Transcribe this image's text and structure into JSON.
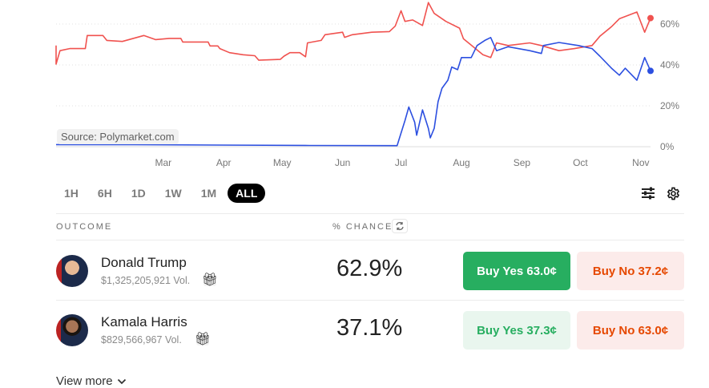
{
  "source_label": "Source: Polymarket.com",
  "chart_data": {
    "type": "line",
    "x_ticks": [
      "Mar",
      "Apr",
      "May",
      "Jun",
      "Jul",
      "Aug",
      "Sep",
      "Oct",
      "Nov"
    ],
    "y_ticks": [
      "0%",
      "20%",
      "40%",
      "60%"
    ],
    "ylim": [
      0,
      70
    ],
    "xlim": [
      "2024-01-06",
      "2024-11-06"
    ],
    "grid": "horizontal dotted",
    "series": [
      {
        "color": "#f0524f",
        "points": [
          [
            "2024-01-06",
            49.5
          ],
          [
            "2024-01-06",
            40.4
          ],
          [
            "2024-01-08",
            47
          ],
          [
            "2024-01-13",
            48
          ],
          [
            "2024-01-21",
            48
          ],
          [
            "2024-01-22",
            54.4
          ],
          [
            "2024-01-30",
            54.4
          ],
          [
            "2024-02-01",
            52
          ],
          [
            "2024-02-09",
            51.5
          ],
          [
            "2024-02-20",
            54.4
          ],
          [
            "2024-02-26",
            52.4
          ],
          [
            "2024-03-04",
            53
          ],
          [
            "2024-03-10",
            53
          ],
          [
            "2024-03-11",
            51.2
          ],
          [
            "2024-03-24",
            51.2
          ],
          [
            "2024-03-25",
            49.3
          ],
          [
            "2024-03-29",
            49.3
          ],
          [
            "2024-03-30",
            48
          ],
          [
            "2024-04-04",
            46
          ],
          [
            "2024-04-11",
            45
          ],
          [
            "2024-04-17",
            44.5
          ],
          [
            "2024-04-19",
            42.3
          ],
          [
            "2024-04-30",
            42.7
          ],
          [
            "2024-05-02",
            44.3
          ],
          [
            "2024-05-05",
            46
          ],
          [
            "2024-05-10",
            46
          ],
          [
            "2024-05-13",
            44
          ],
          [
            "2024-05-14",
            50.8
          ],
          [
            "2024-05-21",
            52
          ],
          [
            "2024-05-23",
            54.8
          ],
          [
            "2024-06-01",
            56
          ],
          [
            "2024-06-02",
            53.5
          ],
          [
            "2024-06-06",
            54.8
          ],
          [
            "2024-06-16",
            56
          ],
          [
            "2024-06-25",
            56.3
          ],
          [
            "2024-06-28",
            59
          ],
          [
            "2024-07-01",
            66.5
          ],
          [
            "2024-07-03",
            61.3
          ],
          [
            "2024-07-07",
            62
          ],
          [
            "2024-07-12",
            59.3
          ],
          [
            "2024-07-15",
            70.5
          ],
          [
            "2024-07-18",
            65.2
          ],
          [
            "2024-07-24",
            61.3
          ],
          [
            "2024-07-31",
            58
          ],
          [
            "2024-08-02",
            52.8
          ],
          [
            "2024-08-07",
            48.9
          ],
          [
            "2024-08-12",
            45
          ],
          [
            "2024-08-16",
            43.6
          ],
          [
            "2024-08-19",
            50.8
          ],
          [
            "2024-08-25",
            49.5
          ],
          [
            "2024-09-05",
            50.8
          ],
          [
            "2024-09-11",
            49.5
          ],
          [
            "2024-09-20",
            47
          ],
          [
            "2024-09-28",
            48
          ],
          [
            "2024-10-07",
            49.5
          ],
          [
            "2024-10-11",
            54
          ],
          [
            "2024-10-17",
            58.7
          ],
          [
            "2024-10-21",
            62.6
          ],
          [
            "2024-10-30",
            65.9
          ],
          [
            "2024-11-03",
            56
          ],
          [
            "2024-11-06",
            62.9
          ]
        ]
      },
      {
        "color": "#2c4fe0",
        "points": [
          [
            "2024-01-06",
            1
          ],
          [
            "2024-02-15",
            1
          ],
          [
            "2024-04-01",
            0.8
          ],
          [
            "2024-05-15",
            0.6
          ],
          [
            "2024-06-29",
            0.5
          ],
          [
            "2024-06-30",
            3.7
          ],
          [
            "2024-07-03",
            12.8
          ],
          [
            "2024-07-05",
            19.4
          ],
          [
            "2024-07-08",
            12
          ],
          [
            "2024-07-09",
            5.6
          ],
          [
            "2024-07-12",
            18
          ],
          [
            "2024-07-15",
            9
          ],
          [
            "2024-07-16",
            4.3
          ],
          [
            "2024-07-18",
            9
          ],
          [
            "2024-07-20",
            22
          ],
          [
            "2024-07-22",
            28.6
          ],
          [
            "2024-07-25",
            32.5
          ],
          [
            "2024-07-27",
            39
          ],
          [
            "2024-07-30",
            37.7
          ],
          [
            "2024-08-01",
            43.6
          ],
          [
            "2024-08-06",
            43.6
          ],
          [
            "2024-08-09",
            49.5
          ],
          [
            "2024-08-13",
            52
          ],
          [
            "2024-08-16",
            53.4
          ],
          [
            "2024-08-19",
            47
          ],
          [
            "2024-08-25",
            48.9
          ],
          [
            "2024-09-05",
            47
          ],
          [
            "2024-09-11",
            45.6
          ],
          [
            "2024-09-12",
            49.5
          ],
          [
            "2024-09-20",
            51
          ],
          [
            "2024-09-30",
            49.5
          ],
          [
            "2024-10-07",
            48
          ],
          [
            "2024-10-11",
            44.3
          ],
          [
            "2024-10-17",
            38.4
          ],
          [
            "2024-10-21",
            35
          ],
          [
            "2024-10-24",
            38.4
          ],
          [
            "2024-10-30",
            32.5
          ],
          [
            "2024-11-03",
            43.6
          ],
          [
            "2024-11-06",
            37.1
          ]
        ]
      }
    ]
  },
  "ranges": [
    "1H",
    "6H",
    "1D",
    "1W",
    "1M",
    "ALL"
  ],
  "active_range": "ALL",
  "table": {
    "outcome_header": "OUTCOME",
    "chance_header": "% CHANCE",
    "rows": [
      {
        "name": "Donald Trump",
        "volume": "$1,325,205,921 Vol.",
        "chance": "62.9%",
        "buy_yes": "Buy Yes 63.0¢",
        "buy_no": "Buy No 37.2¢"
      },
      {
        "name": "Kamala Harris",
        "volume": "$829,566,967 Vol.",
        "chance": "37.1%",
        "buy_yes": "Buy Yes 37.3¢",
        "buy_no": "Buy No 63.0¢"
      }
    ]
  },
  "view_more": "View more"
}
